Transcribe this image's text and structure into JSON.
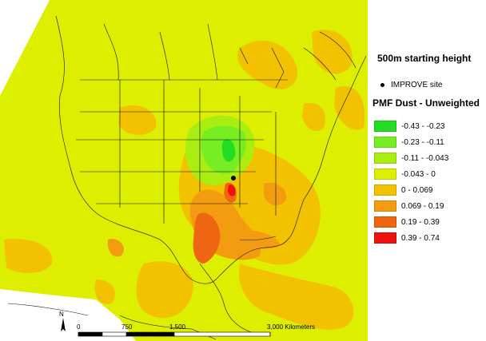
{
  "map": {
    "title": "500m starting height",
    "site_label": "IMPROVE site",
    "legend_title": "PMF Dust - Unweighted",
    "classes": [
      {
        "label": "-0.43 - -0.23",
        "color": "#22dd22"
      },
      {
        "label": "-0.23 - -0.11",
        "color": "#77ee22"
      },
      {
        "label": "-0.11 - -0.043",
        "color": "#aaee11"
      },
      {
        "label": "-0.043 - 0",
        "color": "#ddee00"
      },
      {
        "label": "0 - 0.069",
        "color": "#f2c200"
      },
      {
        "label": "0.069 - 0.19",
        "color": "#f39c10"
      },
      {
        "label": "0.19 - 0.39",
        "color": "#ee6611"
      },
      {
        "label": "0.39 - 0.74",
        "color": "#ee1111"
      }
    ],
    "scale": {
      "ticks": [
        "0",
        "750",
        "1,500",
        "3,000 Kilometers"
      ]
    },
    "north_label": "N"
  }
}
